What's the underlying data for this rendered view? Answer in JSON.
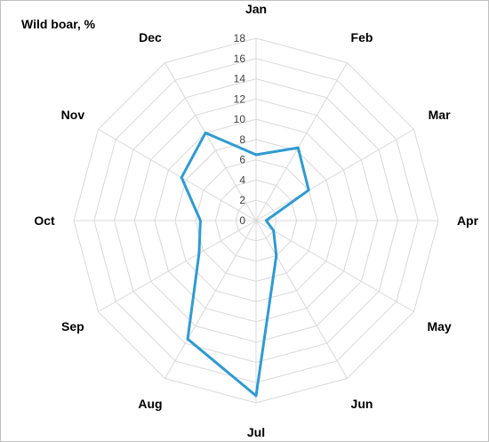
{
  "chart_data": {
    "type": "radar",
    "title": "Wild boar, %",
    "categories": [
      "Jan",
      "Feb",
      "Mar",
      "Apr",
      "May",
      "Jun",
      "Jul",
      "Aug",
      "Sep",
      "Oct",
      "Nov",
      "Dec"
    ],
    "series": [
      {
        "values": [
          6.5,
          8.3,
          6.0,
          1.0,
          2.0,
          4.0,
          17.3,
          13.5,
          6.5,
          5.5,
          8.5,
          10.0
        ],
        "color": "#2E9BD4"
      }
    ],
    "rlim": [
      0,
      18
    ],
    "ticks": [
      "0",
      "2",
      "4",
      "6",
      "8",
      "10",
      "12",
      "14",
      "16",
      "18"
    ],
    "grid": true,
    "legend": "none"
  }
}
